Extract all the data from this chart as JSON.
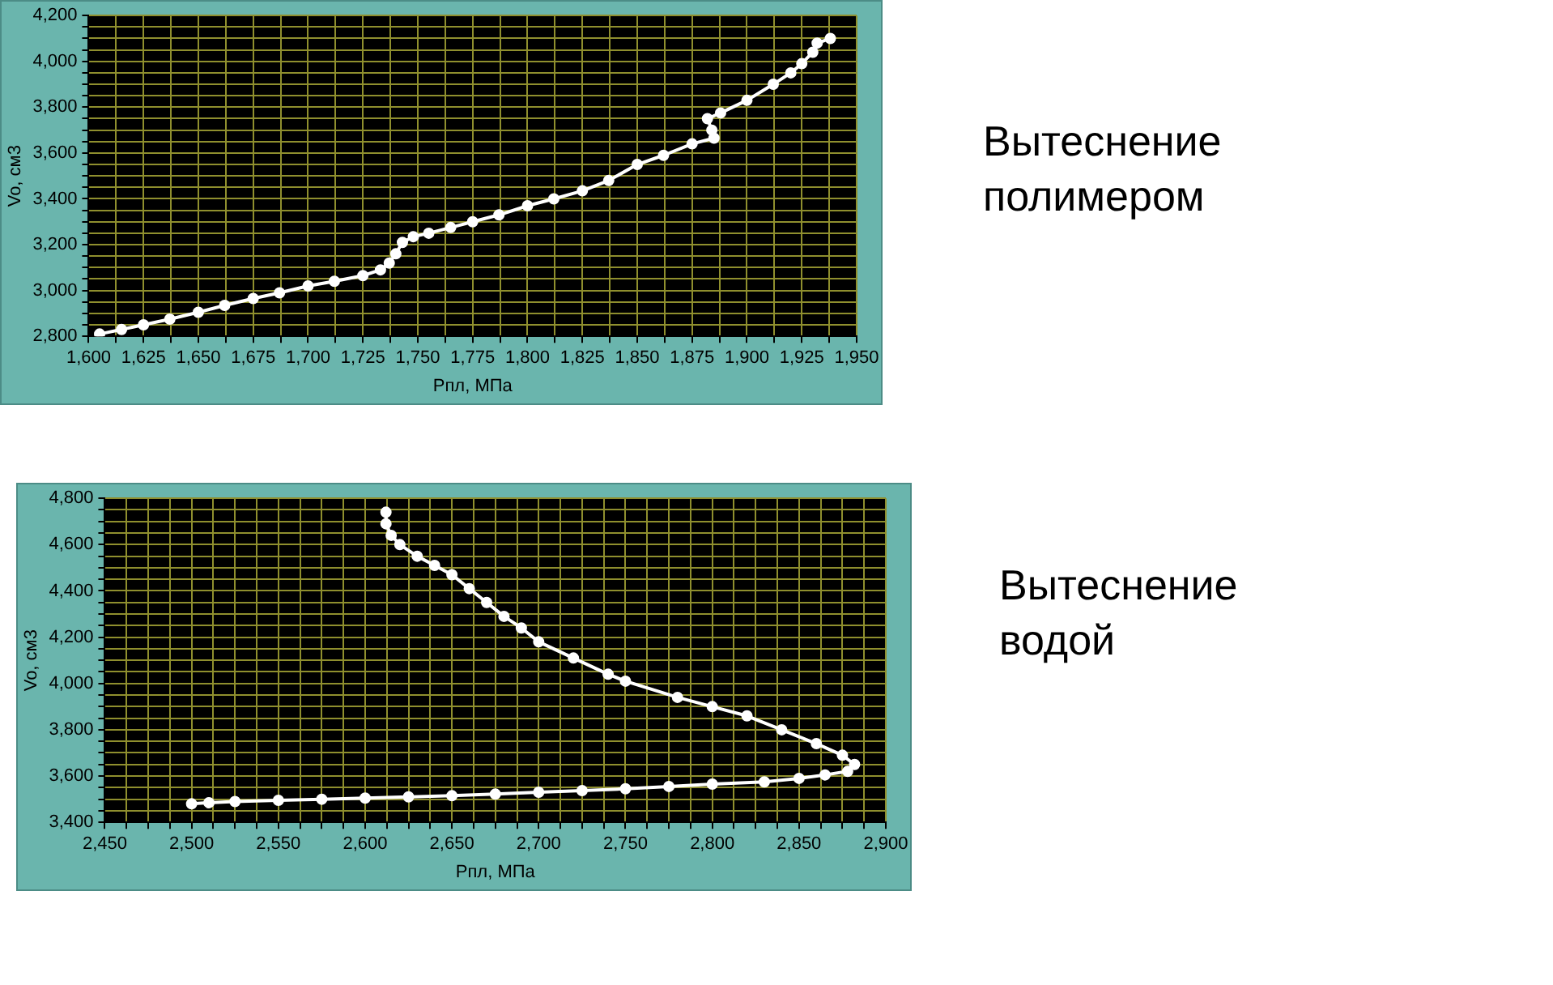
{
  "chart_data": [
    {
      "type": "line",
      "annotations": [
        "Вытеснение полимером"
      ],
      "xlabel": "Рпл, МПа",
      "ylabel": "Vo, см3",
      "marker": "circle",
      "grid": true,
      "legend": false,
      "x": [
        1605,
        1615,
        1625,
        1637,
        1650,
        1662,
        1675,
        1687,
        1700,
        1712,
        1725,
        1733,
        1737,
        1740,
        1743,
        1748,
        1755,
        1765,
        1775,
        1787,
        1800,
        1812,
        1825,
        1837,
        1850,
        1862,
        1875,
        1885,
        1884,
        1882,
        1888,
        1900,
        1912,
        1920,
        1925,
        1930,
        1932,
        1938
      ],
      "series": [
        {
          "color": "#ffffff",
          "values": [
            2810,
            2830,
            2850,
            2875,
            2905,
            2935,
            2965,
            2990,
            3020,
            3040,
            3065,
            3090,
            3120,
            3160,
            3210,
            3235,
            3250,
            3275,
            3300,
            3330,
            3370,
            3400,
            3435,
            3480,
            3550,
            3590,
            3640,
            3665,
            3700,
            3750,
            3775,
            3830,
            3900,
            3950,
            3990,
            4040,
            4080,
            4100
          ]
        }
      ],
      "xlim": [
        1600,
        1950
      ],
      "xticks": [
        {
          "value": 1600,
          "label": "1,600"
        },
        {
          "value": 1612.5,
          "label": null
        },
        {
          "value": 1625,
          "label": "1,625"
        },
        {
          "value": 1637.5,
          "label": null
        },
        {
          "value": 1650,
          "label": "1,650"
        },
        {
          "value": 1662.5,
          "label": null
        },
        {
          "value": 1675,
          "label": "1,675"
        },
        {
          "value": 1687.5,
          "label": null
        },
        {
          "value": 1700,
          "label": "1,700"
        },
        {
          "value": 1712.5,
          "label": null
        },
        {
          "value": 1725,
          "label": "1,725"
        },
        {
          "value": 1737.5,
          "label": null
        },
        {
          "value": 1750,
          "label": "1,750"
        },
        {
          "value": 1762.5,
          "label": null
        },
        {
          "value": 1775,
          "label": "1,775"
        },
        {
          "value": 1787.5,
          "label": null
        },
        {
          "value": 1800,
          "label": "1,800"
        },
        {
          "value": 1812.5,
          "label": null
        },
        {
          "value": 1825,
          "label": "1,825"
        },
        {
          "value": 1837.5,
          "label": null
        },
        {
          "value": 1850,
          "label": "1,850"
        },
        {
          "value": 1862.5,
          "label": null
        },
        {
          "value": 1875,
          "label": "1,875"
        },
        {
          "value": 1887.5,
          "label": null
        },
        {
          "value": 1900,
          "label": "1,900"
        },
        {
          "value": 1912.5,
          "label": null
        },
        {
          "value": 1925,
          "label": "1,925"
        },
        {
          "value": 1937.5,
          "label": null
        },
        {
          "value": 1950,
          "label": "1,950"
        }
      ],
      "ylim": [
        2800,
        4200
      ],
      "yticks": [
        {
          "value": 2800,
          "label": "2,800"
        },
        {
          "value": 2850,
          "label": null
        },
        {
          "value": 2900,
          "label": null
        },
        {
          "value": 2950,
          "label": null
        },
        {
          "value": 3000,
          "label": "3,000"
        },
        {
          "value": 3050,
          "label": null
        },
        {
          "value": 3100,
          "label": null
        },
        {
          "value": 3150,
          "label": null
        },
        {
          "value": 3200,
          "label": "3,200"
        },
        {
          "value": 3250,
          "label": null
        },
        {
          "value": 3300,
          "label": null
        },
        {
          "value": 3350,
          "label": null
        },
        {
          "value": 3400,
          "label": "3,400"
        },
        {
          "value": 3450,
          "label": null
        },
        {
          "value": 3500,
          "label": null
        },
        {
          "value": 3550,
          "label": null
        },
        {
          "value": 3600,
          "label": "3,600"
        },
        {
          "value": 3650,
          "label": null
        },
        {
          "value": 3700,
          "label": null
        },
        {
          "value": 3750,
          "label": null
        },
        {
          "value": 3800,
          "label": "3,800"
        },
        {
          "value": 3850,
          "label": null
        },
        {
          "value": 3900,
          "label": null
        },
        {
          "value": 3950,
          "label": null
        },
        {
          "value": 4000,
          "label": "4,000"
        },
        {
          "value": 4050,
          "label": null
        },
        {
          "value": 4100,
          "label": null
        },
        {
          "value": 4150,
          "label": null
        },
        {
          "value": 4200,
          "label": "4,200"
        }
      ]
    },
    {
      "type": "line",
      "annotations": [
        "Вытеснение водой"
      ],
      "xlabel": "Рпл, МПа",
      "ylabel": "Vo, см3",
      "marker": "circle",
      "grid": true,
      "legend": false,
      "x": [
        2612,
        2612,
        2615,
        2620,
        2630,
        2640,
        2650,
        2660,
        2670,
        2680,
        2690,
        2700,
        2720,
        2740,
        2750,
        2780,
        2800,
        2820,
        2840,
        2860,
        2875,
        2882,
        2878,
        2865,
        2850,
        2830,
        2800,
        2775,
        2750,
        2725,
        2700,
        2675,
        2650,
        2625,
        2600,
        2575,
        2550,
        2525,
        2510,
        2500
      ],
      "series": [
        {
          "color": "#ffffff",
          "values": [
            4740,
            4690,
            4640,
            4600,
            4550,
            4510,
            4470,
            4410,
            4350,
            4290,
            4240,
            4180,
            4110,
            4040,
            4010,
            3940,
            3900,
            3860,
            3800,
            3740,
            3690,
            3650,
            3620,
            3605,
            3590,
            3575,
            3565,
            3555,
            3545,
            3537,
            3530,
            3522,
            3515,
            3510,
            3505,
            3500,
            3495,
            3490,
            3485,
            3480
          ]
        }
      ],
      "xlim": [
        2450,
        2900
      ],
      "xticks": [
        {
          "value": 2450,
          "label": "2,450"
        },
        {
          "value": 2462.5,
          "label": null
        },
        {
          "value": 2475,
          "label": null
        },
        {
          "value": 2487.5,
          "label": null
        },
        {
          "value": 2500,
          "label": "2,500"
        },
        {
          "value": 2512.5,
          "label": null
        },
        {
          "value": 2525,
          "label": null
        },
        {
          "value": 2537.5,
          "label": null
        },
        {
          "value": 2550,
          "label": "2,550"
        },
        {
          "value": 2562.5,
          "label": null
        },
        {
          "value": 2575,
          "label": null
        },
        {
          "value": 2587.5,
          "label": null
        },
        {
          "value": 2600,
          "label": "2,600"
        },
        {
          "value": 2612.5,
          "label": null
        },
        {
          "value": 2625,
          "label": null
        },
        {
          "value": 2637.5,
          "label": null
        },
        {
          "value": 2650,
          "label": "2,650"
        },
        {
          "value": 2662.5,
          "label": null
        },
        {
          "value": 2675,
          "label": null
        },
        {
          "value": 2687.5,
          "label": null
        },
        {
          "value": 2700,
          "label": "2,700"
        },
        {
          "value": 2712.5,
          "label": null
        },
        {
          "value": 2725,
          "label": null
        },
        {
          "value": 2737.5,
          "label": null
        },
        {
          "value": 2750,
          "label": "2,750"
        },
        {
          "value": 2762.5,
          "label": null
        },
        {
          "value": 2775,
          "label": null
        },
        {
          "value": 2787.5,
          "label": null
        },
        {
          "value": 2800,
          "label": "2,800"
        },
        {
          "value": 2812.5,
          "label": null
        },
        {
          "value": 2825,
          "label": null
        },
        {
          "value": 2837.5,
          "label": null
        },
        {
          "value": 2850,
          "label": "2,850"
        },
        {
          "value": 2862.5,
          "label": null
        },
        {
          "value": 2875,
          "label": null
        },
        {
          "value": 2887.5,
          "label": null
        },
        {
          "value": 2900,
          "label": "2,900"
        }
      ],
      "ylim": [
        3400,
        4800
      ],
      "yticks": [
        {
          "value": 3400,
          "label": "3,400"
        },
        {
          "value": 3450,
          "label": null
        },
        {
          "value": 3500,
          "label": null
        },
        {
          "value": 3550,
          "label": null
        },
        {
          "value": 3600,
          "label": "3,600"
        },
        {
          "value": 3650,
          "label": null
        },
        {
          "value": 3700,
          "label": null
        },
        {
          "value": 3750,
          "label": null
        },
        {
          "value": 3800,
          "label": "3,800"
        },
        {
          "value": 3850,
          "label": null
        },
        {
          "value": 3900,
          "label": null
        },
        {
          "value": 3950,
          "label": null
        },
        {
          "value": 4000,
          "label": "4,000"
        },
        {
          "value": 4050,
          "label": null
        },
        {
          "value": 4100,
          "label": null
        },
        {
          "value": 4150,
          "label": null
        },
        {
          "value": 4200,
          "label": "4,200"
        },
        {
          "value": 4250,
          "label": null
        },
        {
          "value": 4300,
          "label": null
        },
        {
          "value": 4350,
          "label": null
        },
        {
          "value": 4400,
          "label": "4,400"
        },
        {
          "value": 4450,
          "label": null
        },
        {
          "value": 4500,
          "label": null
        },
        {
          "value": 4550,
          "label": null
        },
        {
          "value": 4600,
          "label": "4,600"
        },
        {
          "value": 4650,
          "label": null
        },
        {
          "value": 4700,
          "label": null
        },
        {
          "value": 4750,
          "label": null
        },
        {
          "value": 4800,
          "label": "4,800"
        }
      ]
    }
  ]
}
